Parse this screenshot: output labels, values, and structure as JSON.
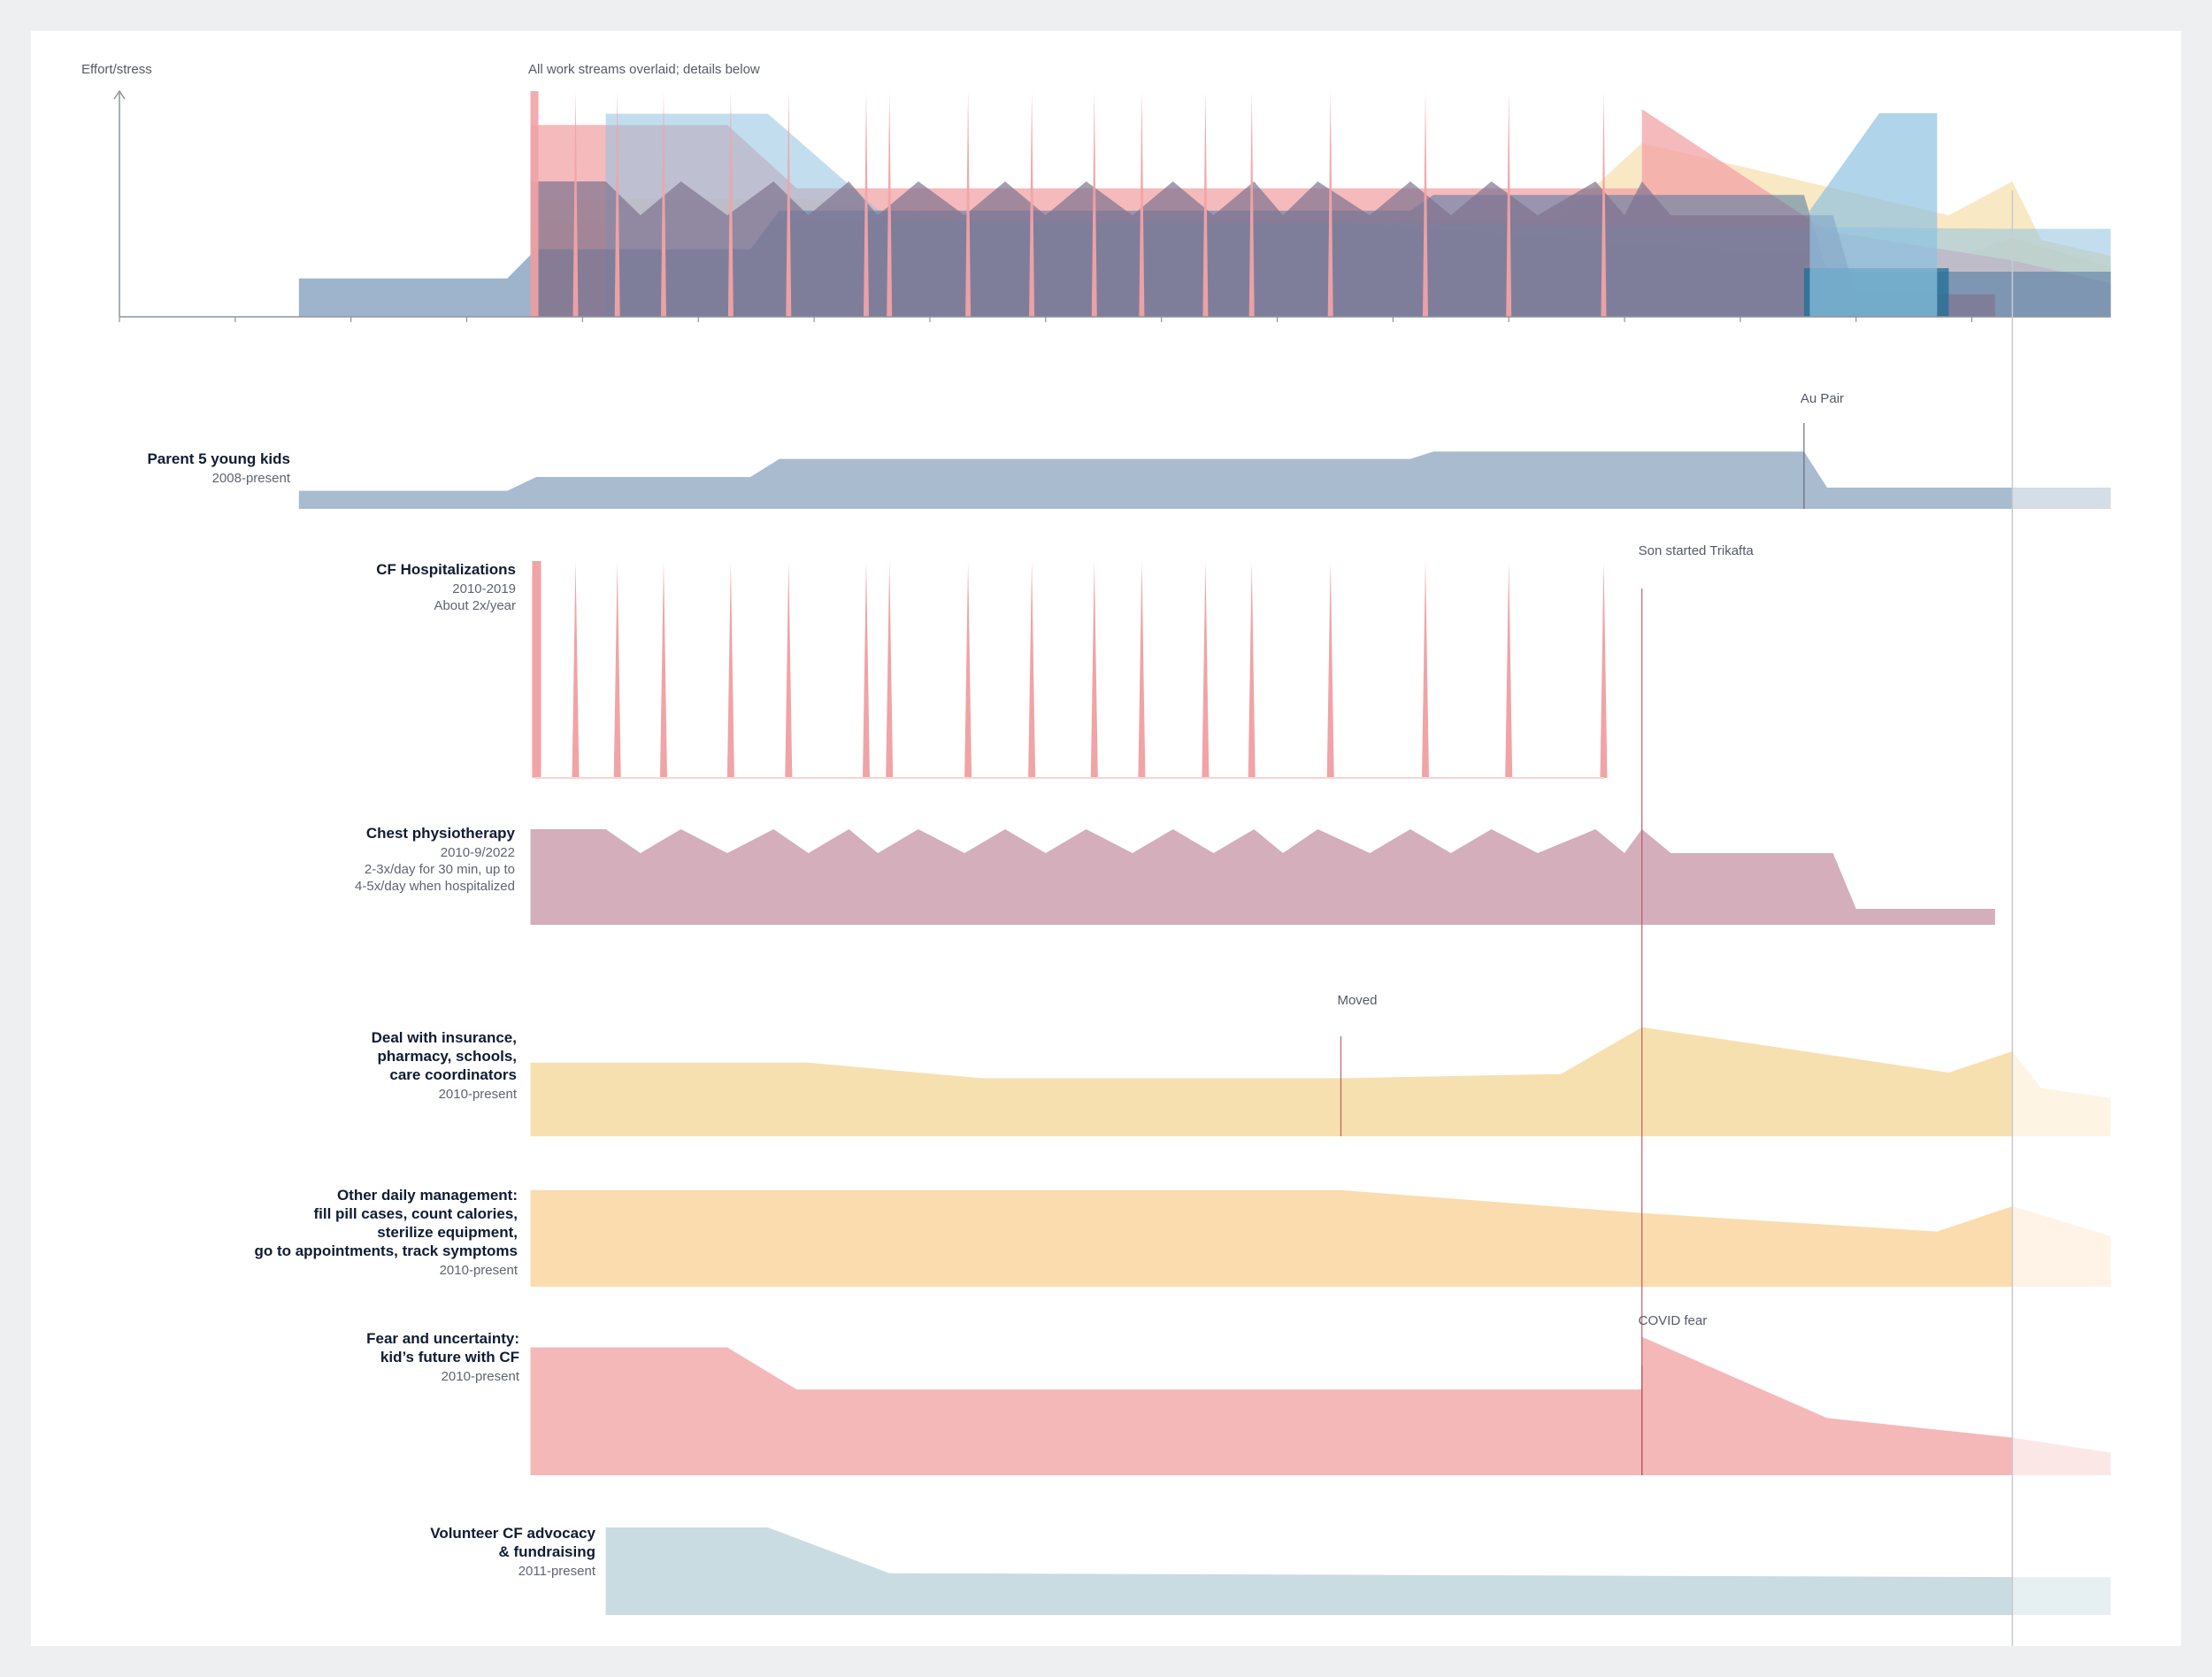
{
  "colors": {
    "parent": "#a9bbcf",
    "parent_faded": "#d5dde6",
    "hosp": "#f1a3a6",
    "physio": "#d4aebb",
    "insurance": "#f7e0b0",
    "insurance_faded": "#fdf4e4",
    "daily": "#fbdcae",
    "daily_faded": "#fef3e6",
    "fear": "#f5b8b9",
    "fear_faded": "#fce7e7",
    "volunteer": "#c9dce1",
    "volunteer_faded": "#e6eff1",
    "overview_parent": "#4d76a3",
    "overview_physio": "#7f7390",
    "overview_teal": "#1f6f96",
    "overview_lightblue": "#8fc2e0",
    "axis": "#8e939c",
    "marker": "#b8505a",
    "marker_gray": "#5f6470"
  },
  "chart_data": {
    "type": "area",
    "title": "All work streams overlaid; details below",
    "ylabel": "Effort/stress",
    "xlim": [
      2007,
      2024.2
    ],
    "ylim": [
      0,
      10
    ],
    "x_ticks": [
      "2007",
      "2008",
      "2009",
      "2010",
      "2011",
      "2012",
      "2013",
      "2014",
      "2015",
      "2016",
      "2017",
      "2018",
      "2019",
      "2020",
      "2021",
      "2022",
      "2023"
    ],
    "present_x": 2023.35,
    "series": [
      {
        "id": "parent",
        "name": "Parent 5 young kids",
        "period": "2008-present",
        "detail": [],
        "points": [
          [
            2008.55,
            1.7
          ],
          [
            2010.35,
            1.7
          ],
          [
            2010.6,
            3.0
          ],
          [
            2012.45,
            3.0
          ],
          [
            2012.7,
            4.7
          ],
          [
            2017.55,
            4.7
          ],
          [
            2018.15,
            4.7
          ],
          [
            2018.35,
            5.4
          ],
          [
            2021.55,
            5.4
          ],
          [
            2021.75,
            2.0
          ],
          [
            2024.2,
            2.0
          ]
        ]
      },
      {
        "id": "hosp",
        "name": "CF Hospitalizations",
        "period": "2010-2019",
        "detail": [
          "About 2x/year"
        ],
        "spikes": [
          2010.58,
          2010.94,
          2011.3,
          2011.7,
          2012.28,
          2012.78,
          2013.45,
          2013.65,
          2014.33,
          2014.88,
          2015.42,
          2015.83,
          2016.38,
          2016.78,
          2017.46,
          2018.28,
          2019.0,
          2019.82
        ],
        "peak": 10
      },
      {
        "id": "physio",
        "name": "Chest physiotherapy",
        "period": "2010-9/2022",
        "detail": [
          "2-3x/day for 30 min, up to",
          "4-5x/day when hospitalized"
        ],
        "points": [
          [
            2010.55,
            6.0
          ],
          [
            2011.2,
            6.0
          ],
          [
            2011.5,
            4.5
          ],
          [
            2011.85,
            6.0
          ],
          [
            2012.25,
            4.5
          ],
          [
            2012.65,
            6.0
          ],
          [
            2012.95,
            4.5
          ],
          [
            2013.3,
            6.0
          ],
          [
            2013.55,
            4.5
          ],
          [
            2013.9,
            6.0
          ],
          [
            2014.3,
            4.5
          ],
          [
            2014.65,
            6.0
          ],
          [
            2015.0,
            4.5
          ],
          [
            2015.35,
            6.0
          ],
          [
            2015.75,
            4.5
          ],
          [
            2016.1,
            6.0
          ],
          [
            2016.45,
            4.5
          ],
          [
            2016.8,
            6.0
          ],
          [
            2017.05,
            4.5
          ],
          [
            2017.35,
            6.0
          ],
          [
            2017.8,
            4.5
          ],
          [
            2018.15,
            6.0
          ],
          [
            2018.5,
            4.5
          ],
          [
            2018.85,
            6.0
          ],
          [
            2019.25,
            4.5
          ],
          [
            2019.75,
            6.0
          ],
          [
            2020.0,
            4.5
          ],
          [
            2020.15,
            6.0
          ],
          [
            2020.4,
            4.5
          ],
          [
            2021.8,
            4.5
          ],
          [
            2022.0,
            1.0
          ],
          [
            2023.2,
            1.0
          ]
        ]
      },
      {
        "id": "insurance",
        "name": "Deal with insurance,",
        "name2": "pharmacy, schools,",
        "name3": "care coordinators",
        "period": "2010-present",
        "detail": [],
        "points": [
          [
            2010.55,
            5.2
          ],
          [
            2012.95,
            5.2
          ],
          [
            2014.45,
            4.1
          ],
          [
            2017.55,
            4.1
          ],
          [
            2019.45,
            4.4
          ],
          [
            2020.15,
            7.7
          ],
          [
            2022.8,
            4.5
          ],
          [
            2023.35,
            6.0
          ],
          [
            2023.6,
            3.4
          ],
          [
            2024.2,
            2.7
          ]
        ]
      },
      {
        "id": "daily",
        "name": "Other daily management:",
        "name2": "fill pill cases, count calories,",
        "name3": "sterilize equipment,",
        "name4": "go to appointments, track symptoms",
        "period": "2010-present",
        "detail": [],
        "points": [
          [
            2010.55,
            4.2
          ],
          [
            2017.55,
            4.2
          ],
          [
            2020.15,
            3.2
          ],
          [
            2022.7,
            2.4
          ],
          [
            2023.35,
            3.5
          ],
          [
            2024.2,
            2.2
          ]
        ]
      },
      {
        "id": "fear",
        "name": "Fear and uncertainty:",
        "name2": "kid’s future with CF",
        "period": "2010-present",
        "detail": [],
        "points": [
          [
            2010.55,
            8.5
          ],
          [
            2012.25,
            8.5
          ],
          [
            2012.85,
            5.7
          ],
          [
            2020.15,
            5.7
          ],
          [
            2020.15,
            9.2
          ],
          [
            2021.75,
            3.8
          ],
          [
            2023.35,
            2.5
          ],
          [
            2024.2,
            1.5
          ]
        ]
      },
      {
        "id": "volunteer",
        "name": "Volunteer CF advocacy",
        "name2": "& fundraising",
        "period": "2011-present",
        "detail": [],
        "points": [
          [
            2011.2,
            9.0
          ],
          [
            2012.6,
            9.0
          ],
          [
            2013.65,
            4.3
          ],
          [
            2023.35,
            3.9
          ],
          [
            2024.2,
            3.9
          ]
        ]
      }
    ],
    "annotations": [
      {
        "label": "Au Pair",
        "x": 2021.55,
        "series": "parent"
      },
      {
        "label": "Son started Trikafta",
        "x": 2020.15,
        "series": "hosp"
      },
      {
        "label": "Moved",
        "x": 2017.55,
        "series": "insurance"
      },
      {
        "label": "COVID fear",
        "x": 2020.15,
        "series": "fear"
      }
    ]
  }
}
